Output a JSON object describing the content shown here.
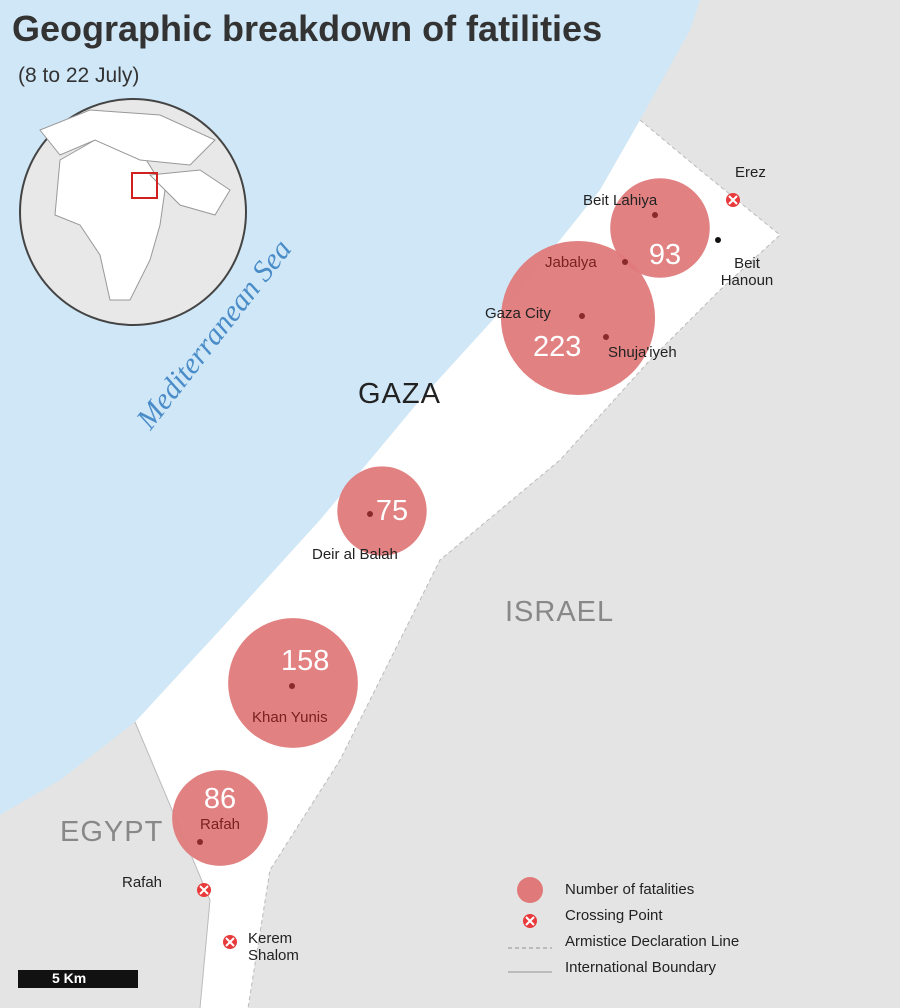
{
  "title": "Geographic breakdown of fatilities",
  "subtitle": "(8 to 22 July)",
  "sea_label": "Mediterranean Sea",
  "regions": [
    "GAZA",
    "ISRAEL",
    "EGYPT"
  ],
  "places": [
    "Erez",
    "Beit Lahiya",
    "Jabalya",
    "Beit Hanoun",
    "Gaza City",
    "Shuja'iyeh",
    "Deir al Balah",
    "Khan Yunis",
    "Rafah",
    "Rafah",
    "Kerem Shalom"
  ],
  "fatalities": [
    93,
    223,
    75,
    158,
    86
  ],
  "legend": [
    "Number of fatalities",
    "Crossing Point",
    "Armistice Declaration Line",
    "International Boundary"
  ],
  "scale": "5 Km"
}
